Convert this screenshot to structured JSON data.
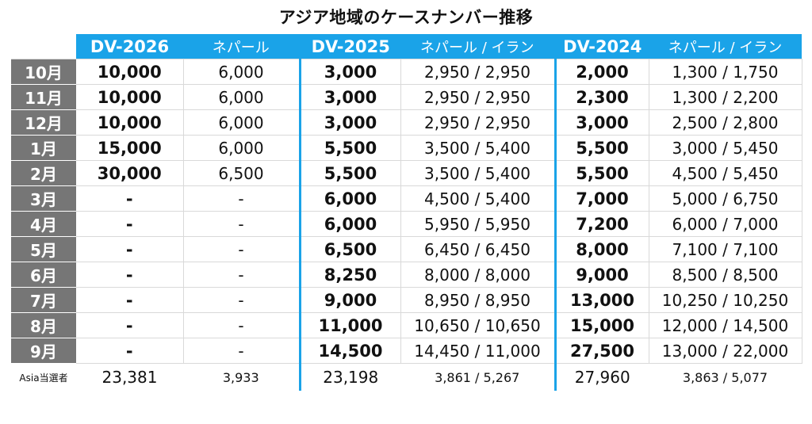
{
  "title": "アジア地域のケースナンバー推移",
  "headers": {
    "dv2026": "DV-2026",
    "dv2026_sub": "ネパール",
    "dv2025": "DV-2025",
    "dv2025_sub": "ネパール / イラン",
    "dv2024": "DV-2024",
    "dv2024_sub": "ネパール / イラン"
  },
  "rows": [
    {
      "month": "10月",
      "a26": "10,000",
      "n26": "6,000",
      "a25": "3,000",
      "n25": "2,950 / 2,950",
      "a24": "2,000",
      "n24": "1,300 / 1,750"
    },
    {
      "month": "11月",
      "a26": "10,000",
      "n26": "6,000",
      "a25": "3,000",
      "n25": "2,950 / 2,950",
      "a24": "2,300",
      "n24": "1,300 / 2,200"
    },
    {
      "month": "12月",
      "a26": "10,000",
      "n26": "6,000",
      "a25": "3,000",
      "n25": "2,950 / 2,950",
      "a24": "3,000",
      "n24": "2,500 / 2,800"
    },
    {
      "month": "1月",
      "a26": "15,000",
      "n26": "6,000",
      "a25": "5,500",
      "n25": "3,500 / 5,400",
      "a24": "5,500",
      "n24": "3,000 / 5,450"
    },
    {
      "month": "2月",
      "a26": "30,000",
      "n26": "6,500",
      "a25": "5,500",
      "n25": "3,500 / 5,400",
      "a24": "5,500",
      "n24": "4,500 / 5,450"
    },
    {
      "month": "3月",
      "a26": "-",
      "n26": "-",
      "a25": "6,000",
      "n25": "4,500 / 5,400",
      "a24": "7,000",
      "n24": "5,000 / 6,750"
    },
    {
      "month": "4月",
      "a26": "-",
      "n26": "-",
      "a25": "6,000",
      "n25": "5,950 / 5,950",
      "a24": "7,200",
      "n24": "6,000 / 7,000"
    },
    {
      "month": "5月",
      "a26": "-",
      "n26": "-",
      "a25": "6,500",
      "n25": "6,450 / 6,450",
      "a24": "8,000",
      "n24": "7,100 / 7,100"
    },
    {
      "month": "6月",
      "a26": "-",
      "n26": "-",
      "a25": "8,250",
      "n25": "8,000 / 8,000",
      "a24": "9,000",
      "n24": "8,500 / 8,500"
    },
    {
      "month": "7月",
      "a26": "-",
      "n26": "-",
      "a25": "9,000",
      "n25": "8,950 / 8,950",
      "a24": "13,000",
      "n24": "10,250 / 10,250"
    },
    {
      "month": "8月",
      "a26": "-",
      "n26": "-",
      "a25": "11,000",
      "n25": "10,650 / 10,650",
      "a24": "15,000",
      "n24": "12,000 / 14,500"
    },
    {
      "month": "9月",
      "a26": "-",
      "n26": "-",
      "a25": "14,500",
      "n25": "14,450 / 11,000",
      "a24": "27,500",
      "n24": "13,000 / 22,000"
    }
  ],
  "footer": {
    "label": "Asia当選者",
    "a26": "23,381",
    "n26": "3,933",
    "a25": "23,198",
    "n25": "3,861 / 5,267",
    "a24": "27,960",
    "n24": "3,863 / 5,077"
  }
}
